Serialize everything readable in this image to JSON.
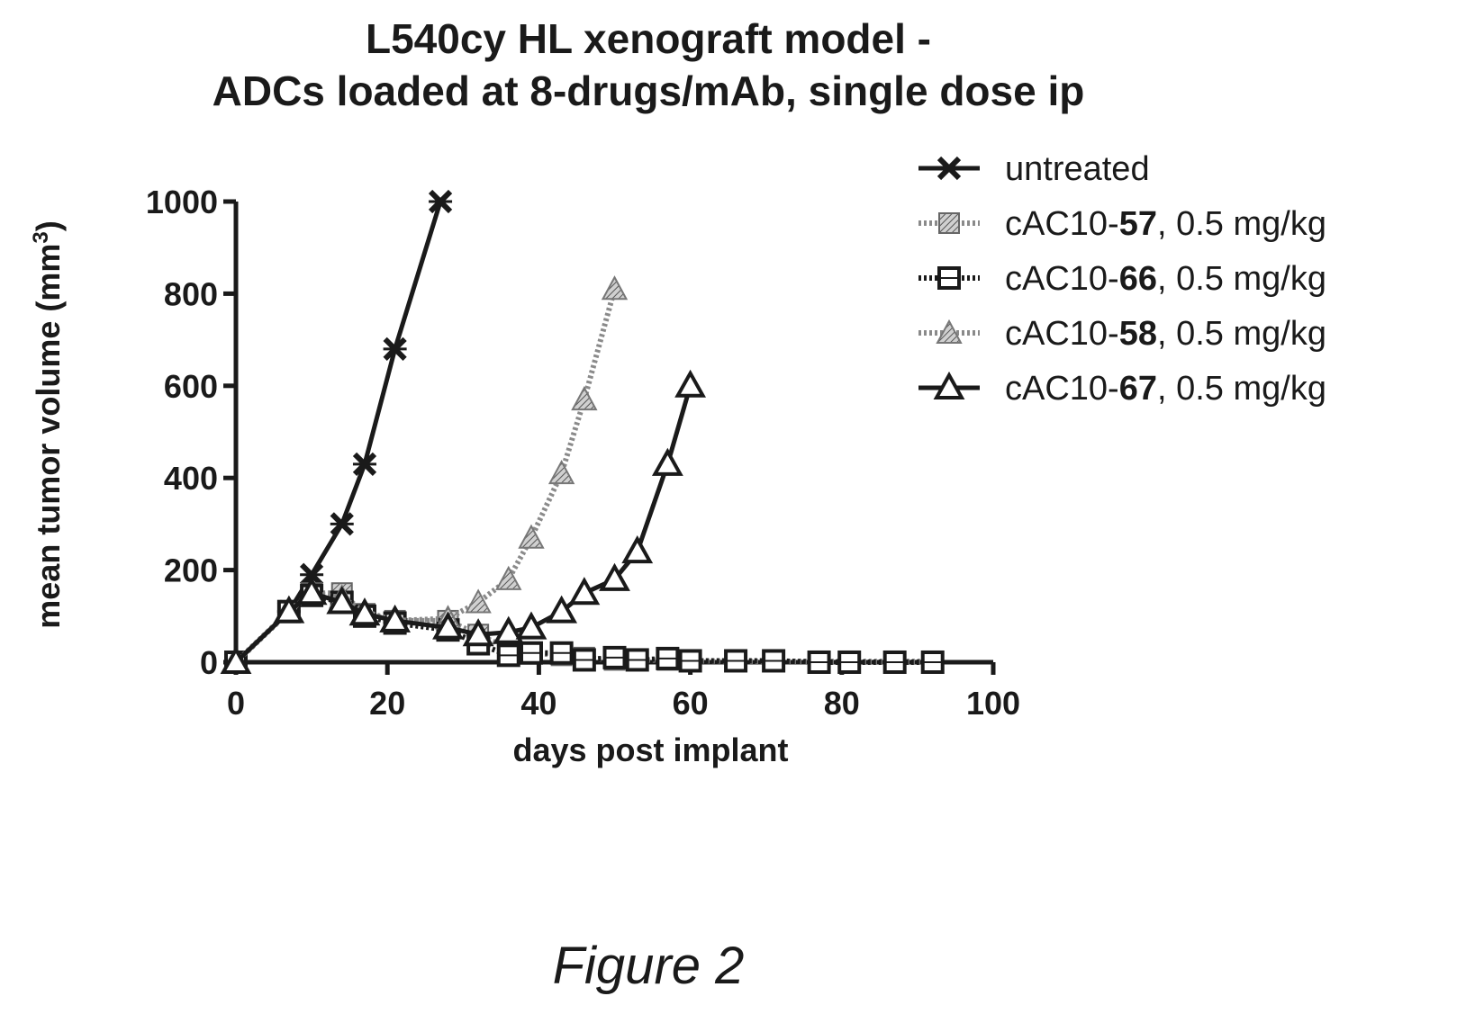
{
  "title_line1": "L540cy HL xenograft model -",
  "title_line2": "ADCs loaded at 8-drugs/mAb, single dose ip",
  "caption": "Figure 2",
  "chart_data": {
    "type": "line",
    "xlabel": "days post implant",
    "ylabel": "mean tumor volume (mm",
    "ylabel_sup": "3",
    "ylabel_close": ")",
    "xlim": [
      0,
      100
    ],
    "ylim": [
      0,
      1000
    ],
    "xticks": [
      0,
      20,
      40,
      60,
      80,
      100
    ],
    "yticks": [
      0,
      200,
      400,
      600,
      800,
      1000
    ],
    "legend_position": "top-right",
    "series": [
      {
        "name_prefix": "untreated",
        "name_bold": "",
        "name_suffix": "",
        "marker": "x",
        "color": "#1a1a1a",
        "stroke": "solid",
        "x": [
          0,
          7,
          10,
          14,
          17,
          21,
          27
        ],
        "y": [
          0,
          110,
          190,
          300,
          430,
          680,
          1000
        ]
      },
      {
        "name_prefix": "cAC10-",
        "name_bold": "57",
        "name_suffix": ", 0.5 mg/kg",
        "marker": "diamond",
        "color": "#8a8a8a",
        "stroke": "dotted",
        "x": [
          0,
          7,
          10,
          14,
          17,
          21,
          28,
          32,
          36,
          39,
          43,
          46,
          50,
          53,
          57,
          60,
          66,
          71,
          77,
          81,
          87,
          92
        ],
        "y": [
          0,
          110,
          150,
          150,
          105,
          90,
          90,
          60,
          30,
          20,
          15,
          10,
          5,
          5,
          5,
          3,
          2,
          2,
          2,
          2,
          2,
          2
        ]
      },
      {
        "name_prefix": "cAC10-",
        "name_bold": "66",
        "name_suffix": ", 0.5 mg/kg",
        "marker": "square",
        "color": "#1a1a1a",
        "stroke": "dotted",
        "x": [
          0,
          7,
          10,
          14,
          17,
          21,
          28,
          32,
          36,
          39,
          43,
          46,
          50,
          53,
          57,
          60,
          66,
          71,
          77,
          81,
          87,
          92
        ],
        "y": [
          0,
          110,
          145,
          130,
          100,
          85,
          70,
          40,
          15,
          20,
          20,
          5,
          10,
          5,
          8,
          3,
          3,
          3,
          0,
          0,
          0,
          0
        ]
      },
      {
        "name_prefix": "cAC10-",
        "name_bold": "58",
        "name_suffix": ", 0.5 mg/kg",
        "marker": "triangle",
        "color": "#8a8a8a",
        "stroke": "dotted",
        "x": [
          0,
          7,
          10,
          14,
          17,
          21,
          28,
          32,
          36,
          39,
          43,
          46,
          50
        ],
        "y": [
          0,
          110,
          150,
          140,
          110,
          90,
          95,
          130,
          180,
          270,
          410,
          570,
          810
        ]
      },
      {
        "name_prefix": "cAC10-",
        "name_bold": "67",
        "name_suffix": ", 0.5 mg/kg",
        "marker": "triangle-open",
        "color": "#1a1a1a",
        "stroke": "solid",
        "x": [
          0,
          7,
          10,
          14,
          17,
          21,
          28,
          32,
          36,
          39,
          43,
          46,
          50,
          53,
          57,
          60
        ],
        "y": [
          0,
          110,
          150,
          130,
          105,
          90,
          75,
          60,
          65,
          75,
          110,
          150,
          180,
          240,
          430,
          600
        ]
      }
    ]
  }
}
